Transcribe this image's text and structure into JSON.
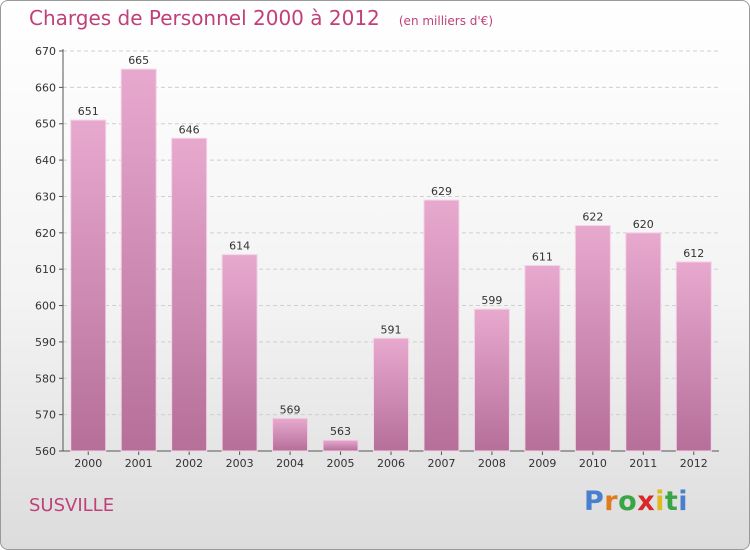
{
  "title": "Charges de Personnel 2000 à 2012",
  "subtitle": "(en milliers d'€)",
  "commune": "SUSVILLE",
  "logo": {
    "letters": [
      "P",
      "r",
      "o",
      "x",
      "i",
      "t",
      "i"
    ],
    "colors": [
      "#4a7fd0",
      "#e07a20",
      "#3aa544",
      "#d8282a",
      "#e0b820",
      "#3aa544",
      "#4a7fd0"
    ]
  },
  "colors": {
    "bar_top": "#e8a9cf",
    "bar_bottom": "#b56f99",
    "title": "#c0407a"
  },
  "chart_data": {
    "type": "bar",
    "categories": [
      "2000",
      "2001",
      "2002",
      "2003",
      "2004",
      "2005",
      "2006",
      "2007",
      "2008",
      "2009",
      "2010",
      "2011",
      "2012"
    ],
    "values": [
      651,
      665,
      646,
      614,
      569,
      563,
      591,
      629,
      599,
      611,
      622,
      620,
      612
    ],
    "ylim": [
      560,
      670
    ],
    "yticks": [
      560,
      570,
      580,
      590,
      600,
      610,
      620,
      630,
      640,
      650,
      660,
      670
    ],
    "grid": true,
    "data_labels": true
  }
}
